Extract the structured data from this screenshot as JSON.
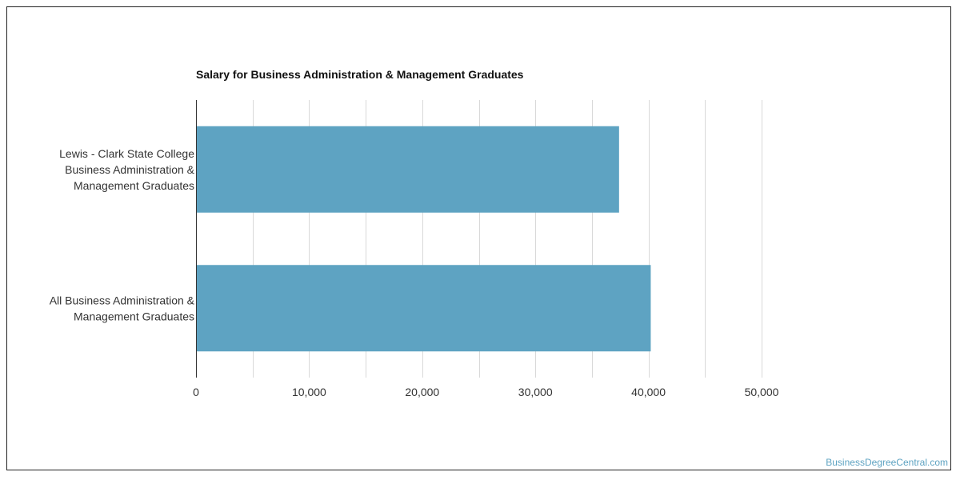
{
  "chart_data": {
    "type": "bar",
    "orientation": "horizontal",
    "title": "Salary for Business Administration & Management Graduates",
    "categories": [
      [
        "Lewis - Clark State College",
        "Business Administration &",
        "Management Graduates"
      ],
      [
        "All Business Administration &",
        "Management Graduates"
      ]
    ],
    "values": [
      37400,
      40200
    ],
    "xlim": [
      0,
      50000
    ],
    "xticks": [
      0,
      10000,
      20000,
      30000,
      40000,
      50000
    ],
    "xtick_labels": [
      "0",
      "10,000",
      "20,000",
      "30,000",
      "40,000",
      "50,000"
    ],
    "grid": true,
    "bar_color": "#5ea3c2",
    "xlabel": "",
    "ylabel": ""
  },
  "watermark": "BusinessDegreeCentral.com"
}
